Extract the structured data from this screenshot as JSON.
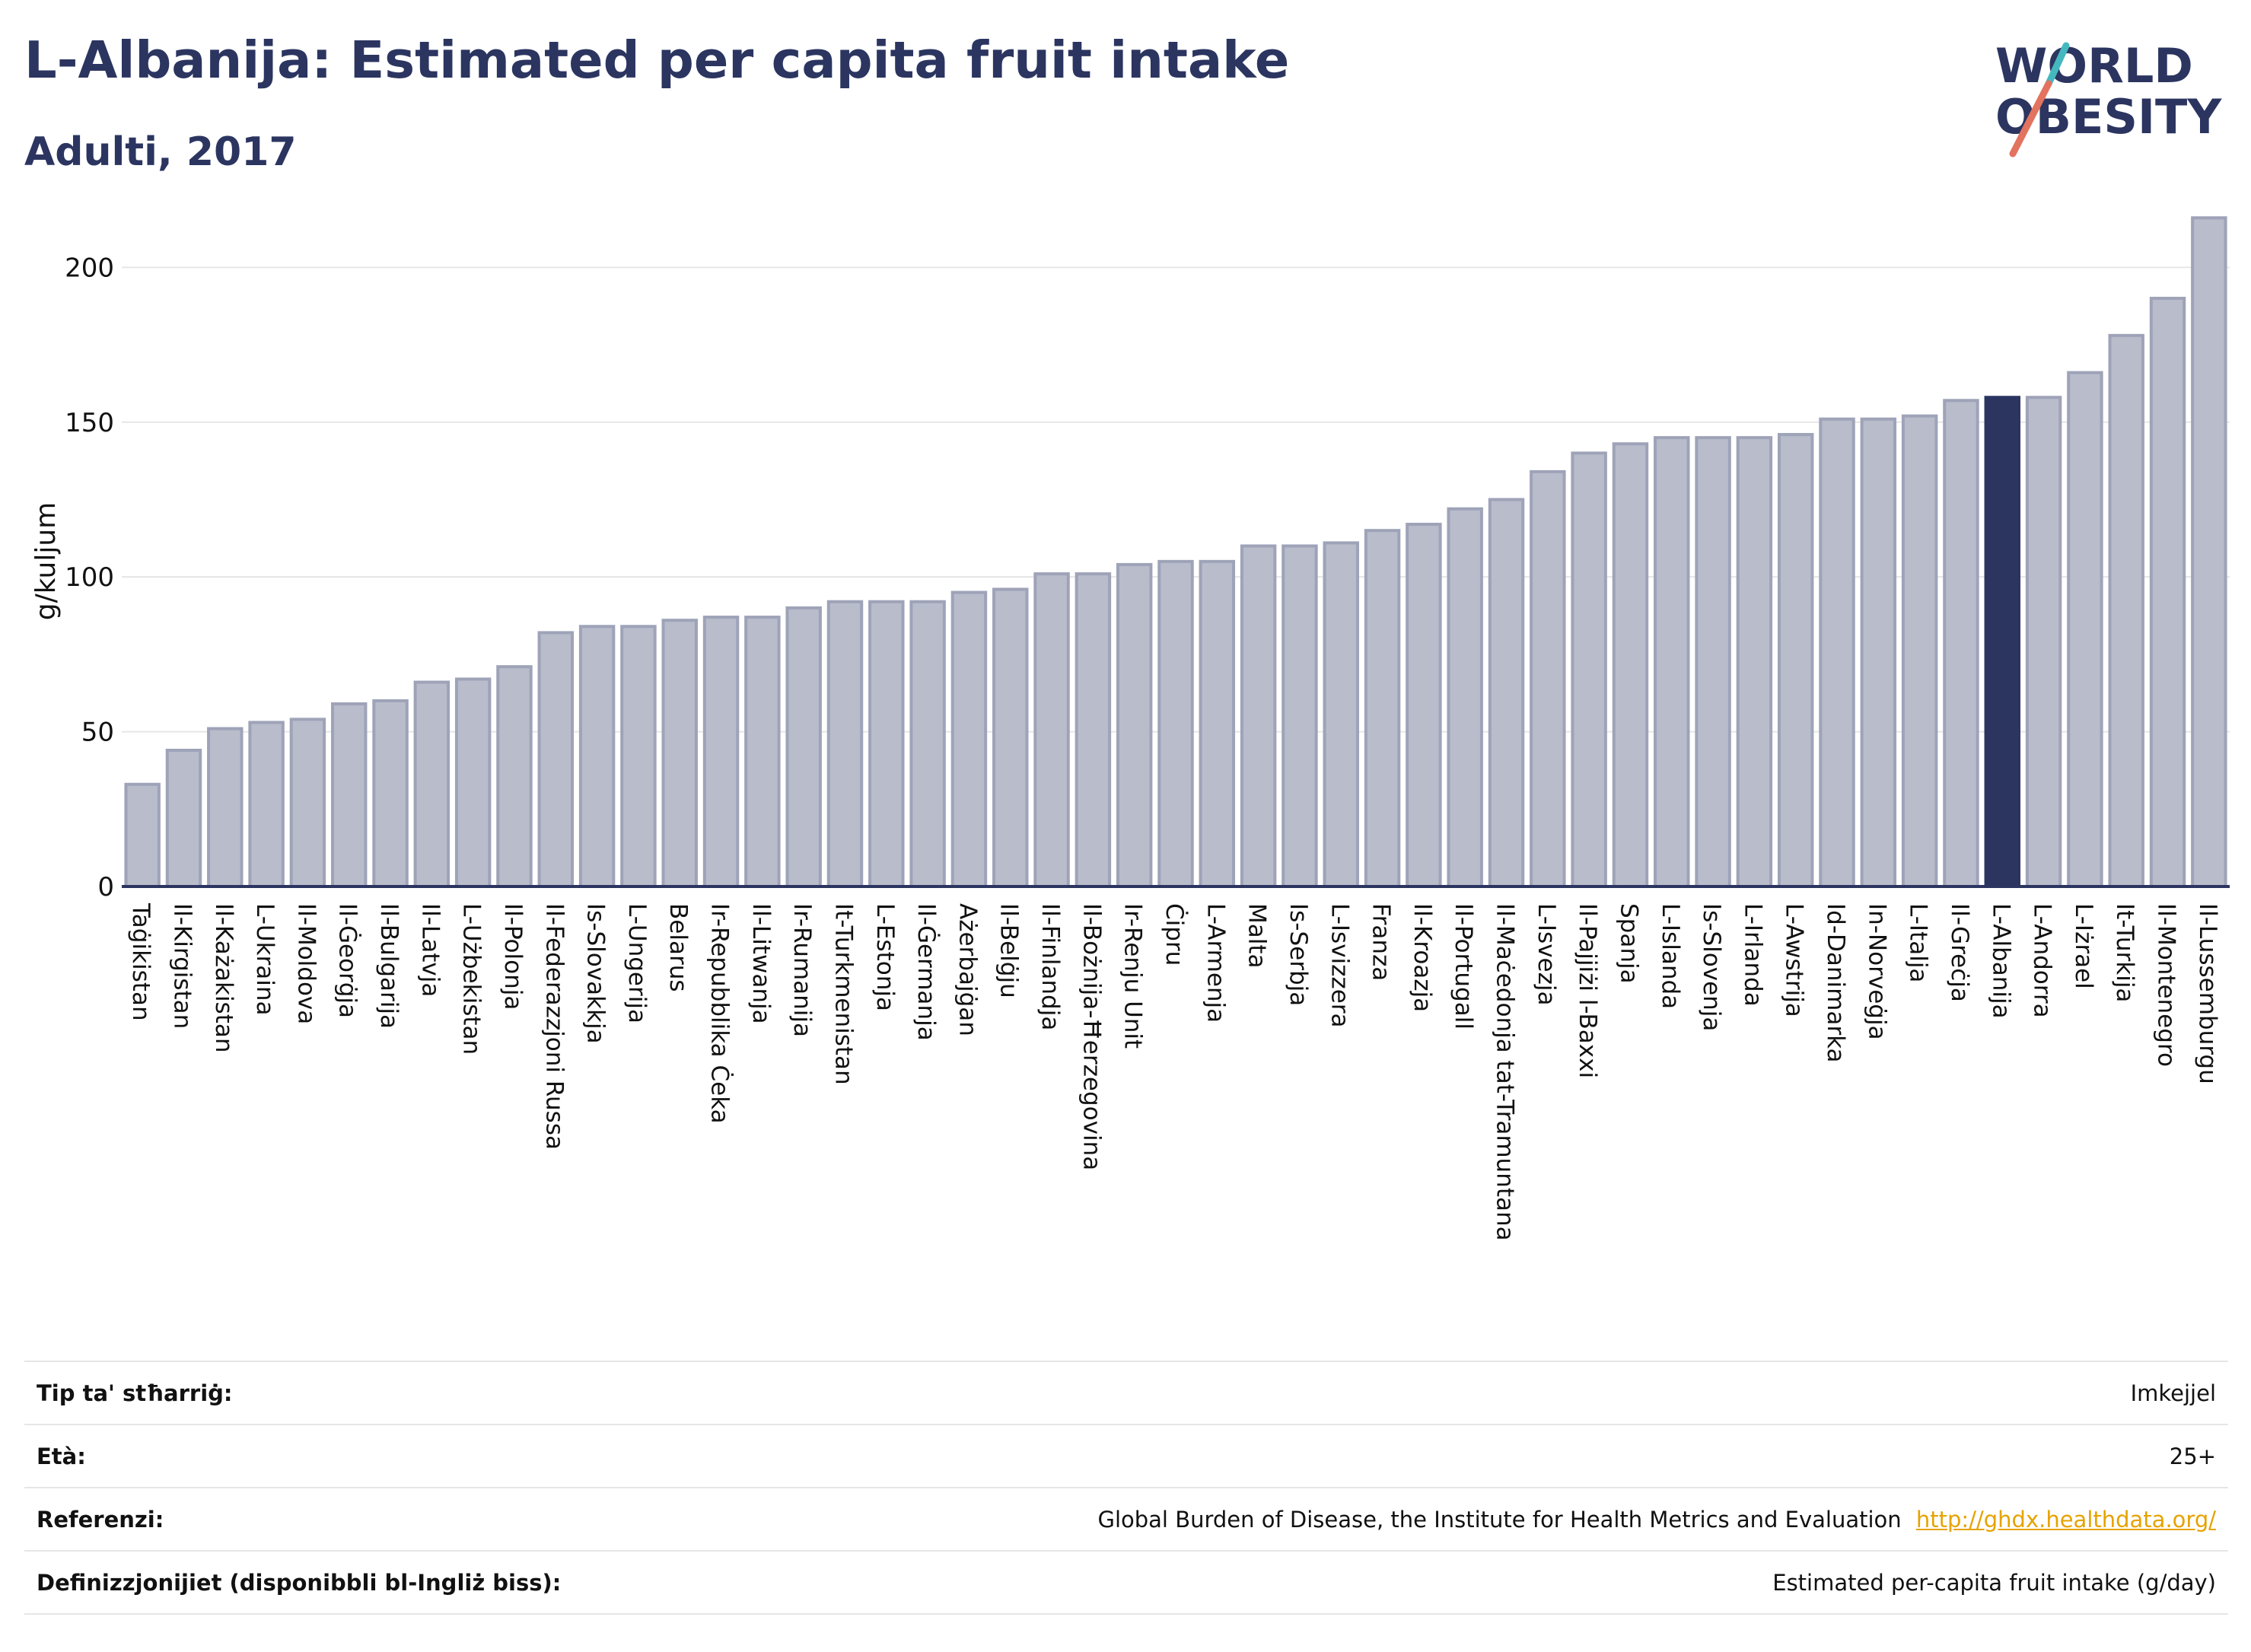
{
  "header": {
    "title": "L-Albanija: Estimated per capita fruit intake",
    "subtitle": "Adulti, 2017"
  },
  "logo": {
    "line1": "WORLD",
    "line2": "OBESITY"
  },
  "colors": {
    "title": "#2b3560",
    "bar": "#b8bccb",
    "bar_stroke": "#9ea3b8",
    "highlight": "#2b3560",
    "axis": "#2b3560",
    "grid": "#e6e6e6",
    "logo_teal": "#45b8bf",
    "logo_red": "#e2735f",
    "link": "#e6a300"
  },
  "chart_data": {
    "type": "bar",
    "ylabel": "g/kuljum",
    "ylim": [
      0,
      220
    ],
    "yticks": [
      0,
      50,
      100,
      150,
      200
    ],
    "grid": true,
    "highlight": "L-Albanija",
    "categories": [
      "Taġikistan",
      "Il-Kirgistan",
      "Il-Każakistan",
      "L-Ukraina",
      "Il-Moldova",
      "Il-Ġeorġja",
      "Il-Bulgarija",
      "Il-Latvja",
      "L-Użbekistan",
      "Il-Polonja",
      "Il-Federazzjoni Russa",
      "Is-Slovakkja",
      "L-Ungerija",
      "Belarus",
      "Ir-Repubblika Ċeka",
      "Il-Litwanja",
      "Ir-Rumanija",
      "It-Turkmenistan",
      "L-Estonja",
      "Il-Ġermanja",
      "Ażerbajġan",
      "Il-Belġju",
      "Il-Finlandja",
      "Il-Bożnija-Ħerzegovina",
      "Ir-Renju Unit",
      "Ċipru",
      "L-Armenja",
      "Malta",
      "Is-Serbja",
      "L-Isvizzera",
      "Franza",
      "Il-Kroazja",
      "Il-Portugall",
      "Il-Maċedonja tat-Tramuntana",
      "L-Isvezja",
      "Il-Pajjiżi l-Baxxi",
      "Spanja",
      "L-Islanda",
      "Is-Slovenja",
      "L-Irlanda",
      "L-Awstrija",
      "Id-Danimarka",
      "In-Norveġja",
      "L-Italja",
      "Il-Greċja",
      "L-Albanija",
      "L-Andorra",
      "L-Iżrael",
      "It-Turkija",
      "Il-Montenegro",
      "Il-Lussemburgu"
    ],
    "values": [
      33,
      44,
      51,
      53,
      54,
      59,
      60,
      66,
      67,
      71,
      82,
      84,
      84,
      86,
      87,
      87,
      90,
      92,
      92,
      92,
      95,
      96,
      101,
      101,
      104,
      105,
      105,
      110,
      110,
      111,
      115,
      117,
      122,
      125,
      134,
      140,
      143,
      145,
      145,
      145,
      146,
      151,
      151,
      152,
      157,
      158,
      158,
      166,
      178,
      190,
      216
    ]
  },
  "info": [
    {
      "label": "Tip ta' stħarriġ:",
      "value": "Imkejjel"
    },
    {
      "label": "Età:",
      "value": "25+"
    },
    {
      "label": "Referenzi:",
      "value": "Global Burden of Disease, the Institute for Health Metrics and Evaluation",
      "link": "http://ghdx.healthdata.org/"
    },
    {
      "label": "Definizzjonijiet (disponibbli bl-Ingliż biss):",
      "value": "Estimated per-capita fruit intake (g/day)"
    }
  ]
}
